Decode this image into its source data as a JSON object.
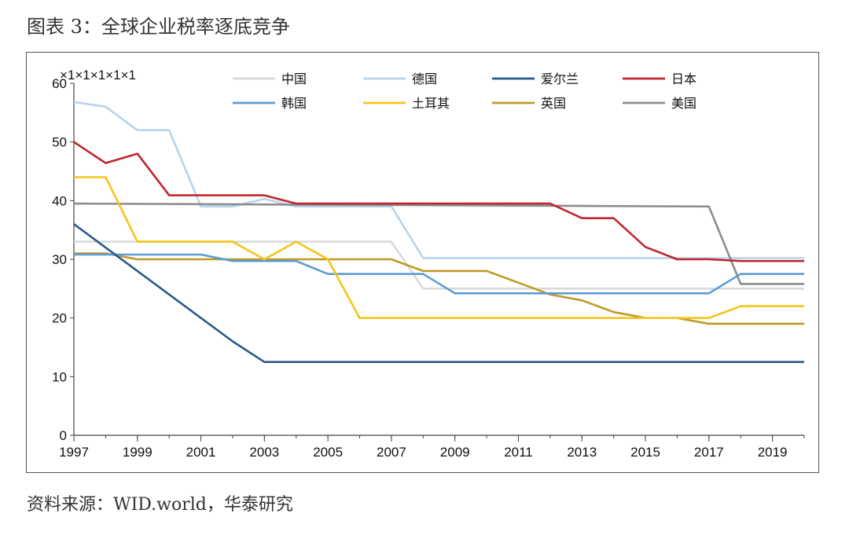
{
  "figure_title": "图表 3：全球企业税率逐底竞争",
  "source_note": "资料来源：WID.world，华泰研究",
  "chart_data": {
    "type": "line",
    "title": "",
    "xlabel": "",
    "ylabel": "",
    "y_unit_label": "×1×1×1×1×1",
    "xlim": [
      1997,
      2020
    ],
    "ylim": [
      0,
      60
    ],
    "x_ticks": [
      "1997",
      "1999",
      "2001",
      "2003",
      "2005",
      "2007",
      "2009",
      "2011",
      "2013",
      "2015",
      "2017",
      "2019"
    ],
    "y_ticks": [
      "0",
      "10",
      "20",
      "30",
      "40",
      "50",
      "60"
    ],
    "grid": false,
    "legend_position": "top",
    "series": [
      {
        "name": "中国",
        "color": "#d9d9d9",
        "points": [
          [
            1997,
            33
          ],
          [
            2007,
            33
          ],
          [
            2008,
            25
          ],
          [
            2020,
            25
          ]
        ]
      },
      {
        "name": "德国",
        "color": "#b8d3ea",
        "points": [
          [
            1997,
            56.8
          ],
          [
            1998,
            56
          ],
          [
            1999,
            52
          ],
          [
            2000,
            52
          ],
          [
            2001,
            39
          ],
          [
            2002,
            39
          ],
          [
            2003,
            40.3
          ],
          [
            2004,
            39
          ],
          [
            2007,
            39
          ],
          [
            2008,
            30.2
          ],
          [
            2020,
            30.2
          ]
        ]
      },
      {
        "name": "爱尔兰",
        "color": "#2a5a8a",
        "points": [
          [
            1997,
            36
          ],
          [
            1999,
            28
          ],
          [
            2001,
            20
          ],
          [
            2002,
            16
          ],
          [
            2003,
            12.5
          ],
          [
            2020,
            12.5
          ]
        ]
      },
      {
        "name": "日本",
        "color": "#c0262d",
        "points": [
          [
            1997,
            50
          ],
          [
            1998,
            46.4
          ],
          [
            1999,
            48
          ],
          [
            2000,
            40.9
          ],
          [
            2003,
            40.9
          ],
          [
            2004,
            39.5
          ],
          [
            2012,
            39.5
          ],
          [
            2013,
            37
          ],
          [
            2014,
            37
          ],
          [
            2015,
            32.1
          ],
          [
            2016,
            30
          ],
          [
            2017,
            30
          ],
          [
            2018,
            29.7
          ],
          [
            2020,
            29.7
          ]
        ]
      },
      {
        "name": "韩国",
        "color": "#5b9bd5",
        "points": [
          [
            1997,
            30.8
          ],
          [
            2001,
            30.8
          ],
          [
            2002,
            29.7
          ],
          [
            2004,
            29.7
          ],
          [
            2005,
            27.5
          ],
          [
            2008,
            27.5
          ],
          [
            2009,
            24.2
          ],
          [
            2017,
            24.2
          ],
          [
            2018,
            27.5
          ],
          [
            2020,
            27.5
          ]
        ]
      },
      {
        "name": "土耳其",
        "color": "#f5c518",
        "points": [
          [
            1997,
            44
          ],
          [
            1998,
            44
          ],
          [
            1999,
            33
          ],
          [
            2002,
            33
          ],
          [
            2003,
            30
          ],
          [
            2004,
            33
          ],
          [
            2005,
            30
          ],
          [
            2006,
            20
          ],
          [
            2017,
            20
          ],
          [
            2018,
            22
          ],
          [
            2020,
            22
          ]
        ]
      },
      {
        "name": "英国",
        "color": "#c09a27",
        "points": [
          [
            1997,
            31
          ],
          [
            1998,
            31
          ],
          [
            1999,
            30
          ],
          [
            2007,
            30
          ],
          [
            2008,
            28
          ],
          [
            2010,
            28
          ],
          [
            2012,
            24
          ],
          [
            2013,
            23
          ],
          [
            2014,
            21
          ],
          [
            2015,
            20
          ],
          [
            2016,
            20
          ],
          [
            2017,
            19
          ],
          [
            2020,
            19
          ]
        ]
      },
      {
        "name": "美国",
        "color": "#8c8c8c",
        "points": [
          [
            1997,
            39.5
          ],
          [
            2017,
            39
          ],
          [
            2018,
            25.8
          ],
          [
            2020,
            25.8
          ]
        ]
      }
    ]
  }
}
